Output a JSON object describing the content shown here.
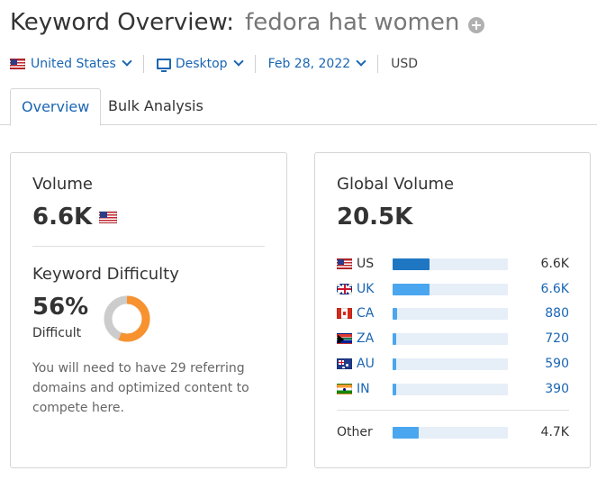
{
  "header": {
    "title": "Keyword Overview:",
    "keyword": "fedora hat women"
  },
  "filters": {
    "database": "United States",
    "device": "Desktop",
    "date": "Feb 28, 2022",
    "currency": "USD"
  },
  "tabs": [
    {
      "label": "Overview",
      "active": true
    },
    {
      "label": "Bulk Analysis",
      "active": false
    }
  ],
  "volume": {
    "label": "Volume",
    "value": "6.6K"
  },
  "keyword_difficulty": {
    "label": "Keyword Difficulty",
    "value": "56%",
    "percent": 56,
    "level": "Difficult",
    "description": "You will need to have 29 referring domains and optimized content to compete here."
  },
  "global_volume": {
    "label": "Global Volume",
    "value": "20.5K",
    "countries": [
      {
        "code": "US",
        "flag": "flag-us",
        "value": "6.6K",
        "share": 0.32,
        "highlight": true
      },
      {
        "code": "UK",
        "flag": "flag-uk",
        "value": "6.6K",
        "share": 0.32,
        "highlight": false
      },
      {
        "code": "CA",
        "flag": "flag-ca",
        "value": "880",
        "share": 0.04,
        "highlight": false
      },
      {
        "code": "ZA",
        "flag": "flag-za",
        "value": "720",
        "share": 0.035,
        "highlight": false
      },
      {
        "code": "AU",
        "flag": "flag-au",
        "value": "590",
        "share": 0.03,
        "highlight": false
      },
      {
        "code": "IN",
        "flag": "flag-in",
        "value": "390",
        "share": 0.025,
        "highlight": false
      }
    ],
    "other": {
      "label": "Other",
      "value": "4.7K",
      "share": 0.23
    }
  },
  "colors": {
    "accent": "#1a66b3",
    "bar": "#4aa6ef",
    "bar_highlight": "#1f77c4",
    "bar_track": "#e6eef8",
    "difficulty": "#f7922f",
    "donut_track": "#cccccc"
  }
}
